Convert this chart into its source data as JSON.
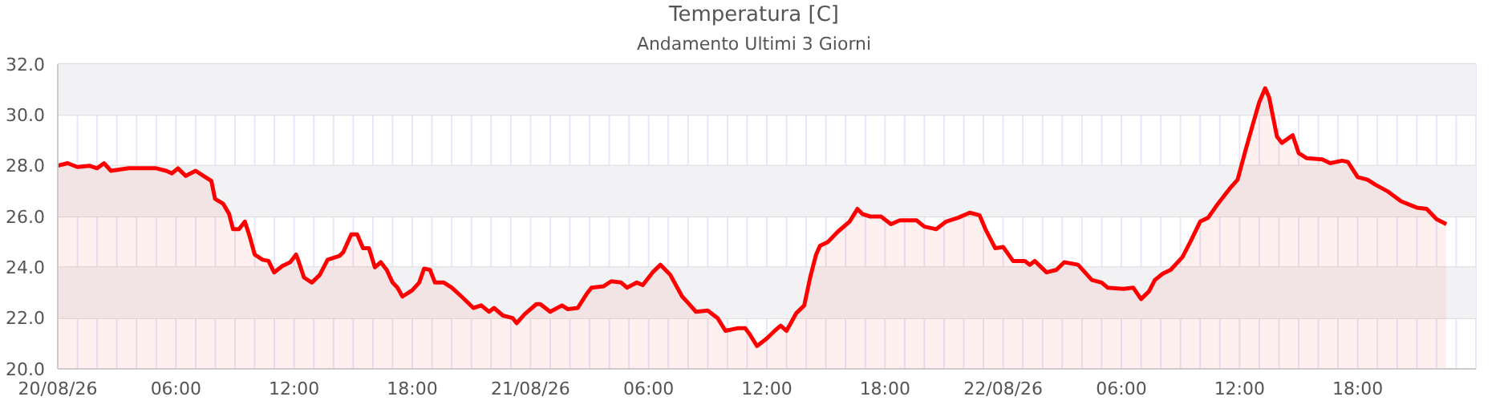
{
  "chart_data": {
    "type": "area",
    "title": "Temperatura [C]",
    "subtitle": "Andamento Ultimi 3 Giorni",
    "x": [
      "--08-20T00:00",
      "--08-20T00:30",
      "--08-20T01:00",
      "--08-20T01:36",
      "--08-20T02:00",
      "--08-20T02:21",
      "--08-20T02:42",
      "--08-20T03:36",
      "--08-20T05:00",
      "--08-20T05:30",
      "--08-20T05:48",
      "--08-20T06:06",
      "--08-20T06:30",
      "--08-20T07:00",
      "--08-20T07:24",
      "--08-20T07:48",
      "--08-20T07:59",
      "--08-20T08:24",
      "--08-20T08:42",
      "--08-20T08:54",
      "--08-20T09:12",
      "--08-20T09:30",
      "--08-20T09:45",
      "--08-20T10:00",
      "--08-20T10:24",
      "--08-20T10:42",
      "--08-20T10:59",
      "--08-20T11:24",
      "--08-20T11:48",
      "--08-20T12:06",
      "--08-20T12:12",
      "--08-20T12:30",
      "--08-20T12:54",
      "--08-20T13:18",
      "--08-20T13:42",
      "--08-20T14:18",
      "--08-20T14:30",
      "--08-20T14:54",
      "--08-20T15:12",
      "--08-20T15:30",
      "--08-20T15:48",
      "--08-20T16:06",
      "--08-20T16:24",
      "--08-20T16:42",
      "--08-20T17:00",
      "--08-20T17:15",
      "--08-20T17:30",
      "--08-20T18:00",
      "--08-20T18:21",
      "--08-20T18:36",
      "--08-20T18:54",
      "--08-20T19:09",
      "--08-20T19:36",
      "--08-20T20:00",
      "--08-20T20:30",
      "--08-20T21:06",
      "--08-20T21:30",
      "--08-20T21:54",
      "--08-20T22:09",
      "--08-20T22:36",
      "--08-20T23:06",
      "--08-20T23:18",
      "--08-20T23:42",
      "--08-21T00:18",
      "--08-21T00:30",
      "--08-21T01:00",
      "--08-21T01:36",
      "--08-21T01:54",
      "--08-21T02:24",
      "--08-21T02:51",
      "--08-21T03:06",
      "--08-21T03:42",
      "--08-21T04:06",
      "--08-21T04:36",
      "--08-21T04:54",
      "--08-21T05:24",
      "--08-21T05:42",
      "--08-21T06:12",
      "--08-21T06:36",
      "--08-21T07:06",
      "--08-21T07:42",
      "--08-21T08:00",
      "--08-21T08:24",
      "--08-21T09:00",
      "--08-21T09:30",
      "--08-21T09:54",
      "--08-21T10:30",
      "--08-21T10:54",
      "--08-21T11:06",
      "--08-21T11:30",
      "--08-21T12:00",
      "--08-21T12:24",
      "--08-21T12:42",
      "--08-21T13:00",
      "--08-21T13:30",
      "--08-21T13:54",
      "--08-21T14:12",
      "--08-21T14:30",
      "--08-21T14:42",
      "--08-21T15:06",
      "--08-21T15:36",
      "--08-21T16:12",
      "--08-21T16:36",
      "--08-21T16:51",
      "--08-21T17:15",
      "--08-21T17:48",
      "--08-21T18:18",
      "--08-21T18:45",
      "--08-21T19:36",
      "--08-21T20:00",
      "--08-21T20:36",
      "--08-21T21:06",
      "--08-21T21:42",
      "--08-21T22:18",
      "--08-21T22:48",
      "--08-21T23:06",
      "--08-21T23:36",
      "--08-22T00:00",
      "--08-22T00:30",
      "--08-22T01:06",
      "--08-22T01:21",
      "--08-22T01:36",
      "--08-22T02:12",
      "--08-22T02:42",
      "--08-22T03:06",
      "--08-22T03:48",
      "--08-22T04:30",
      "--08-22T05:00",
      "--08-22T05:18",
      "--08-22T06:06",
      "--08-22T06:36",
      "--08-22T07:00",
      "--08-22T07:24",
      "--08-22T07:42",
      "--08-22T08:06",
      "--08-22T08:30",
      "--08-22T09:06",
      "--08-22T09:30",
      "--08-22T10:00",
      "--08-22T10:24",
      "--08-22T10:54",
      "--08-22T11:30",
      "--08-22T11:54",
      "--08-22T12:18",
      "--08-22T12:42",
      "--08-22T13:00",
      "--08-22T13:18",
      "--08-22T13:30",
      "--08-22T13:54",
      "--08-22T14:09",
      "--08-22T14:42",
      "--08-22T15:00",
      "--08-22T15:24",
      "--08-22T16:12",
      "--08-22T16:36",
      "--08-22T17:12",
      "--08-22T17:30",
      "--08-22T18:00",
      "--08-22T18:30",
      "--08-22T18:54",
      "--08-22T19:30",
      "--08-22T20:12",
      "--08-22T21:00",
      "--08-22T21:30",
      "--08-22T22:00",
      "--08-22T22:30"
    ],
    "series": [
      {
        "color": "#ff0000",
        "values": [
          28.0,
          28.1,
          27.95,
          28.0,
          27.9,
          28.1,
          27.8,
          27.9,
          27.9,
          27.8,
          27.7,
          27.9,
          27.6,
          27.8,
          27.6,
          27.4,
          26.7,
          26.5,
          26.1,
          25.5,
          25.5,
          25.8,
          25.2,
          24.5,
          24.3,
          24.25,
          23.8,
          24.05,
          24.2,
          24.5,
          24.3,
          23.6,
          23.4,
          23.7,
          24.3,
          24.45,
          24.6,
          25.3,
          25.3,
          24.75,
          24.75,
          24.0,
          24.2,
          23.9,
          23.4,
          23.2,
          22.85,
          23.1,
          23.4,
          23.95,
          23.9,
          23.4,
          23.4,
          23.2,
          22.85,
          22.4,
          22.5,
          22.25,
          22.4,
          22.1,
          22.0,
          21.8,
          22.15,
          22.55,
          22.55,
          22.25,
          22.5,
          22.35,
          22.4,
          22.95,
          23.2,
          23.25,
          23.45,
          23.4,
          23.2,
          23.4,
          23.3,
          23.8,
          24.1,
          23.7,
          22.85,
          22.6,
          22.25,
          22.3,
          22.0,
          21.5,
          21.6,
          21.6,
          21.4,
          20.9,
          21.2,
          21.5,
          21.7,
          21.5,
          22.2,
          22.5,
          23.6,
          24.5,
          24.85,
          25.0,
          25.4,
          25.8,
          26.3,
          26.1,
          26.0,
          26.0,
          25.7,
          25.85,
          25.85,
          25.6,
          25.5,
          25.8,
          25.95,
          26.15,
          26.05,
          25.5,
          24.75,
          24.8,
          24.25,
          24.25,
          24.1,
          24.25,
          23.8,
          23.9,
          24.2,
          24.1,
          23.5,
          23.4,
          23.2,
          23.15,
          23.2,
          22.75,
          23.05,
          23.5,
          23.75,
          23.9,
          24.4,
          25.0,
          25.8,
          25.95,
          26.5,
          27.1,
          27.45,
          28.6,
          29.7,
          30.5,
          31.05,
          30.7,
          29.15,
          28.9,
          29.2,
          28.5,
          28.3,
          28.25,
          28.1,
          28.2,
          28.15,
          27.55,
          27.45,
          27.25,
          27.0,
          26.6,
          26.35,
          26.3,
          25.9,
          25.7
        ]
      }
    ],
    "xlim": [
      "--08-20T00:00",
      "--08-23T00:00"
    ],
    "xticks": [
      {
        "value": "--08-20T00:00",
        "label": "20/08/26"
      },
      {
        "value": "--08-20T01:00",
        "label": null
      },
      {
        "value": "--08-20T02:00",
        "label": null
      },
      {
        "value": "--08-20T03:00",
        "label": null
      },
      {
        "value": "--08-20T04:00",
        "label": null
      },
      {
        "value": "--08-20T05:00",
        "label": null
      },
      {
        "value": "--08-20T06:00",
        "label": "06:00"
      },
      {
        "value": "--08-20T07:00",
        "label": null
      },
      {
        "value": "--08-20T08:00",
        "label": null
      },
      {
        "value": "--08-20T09:00",
        "label": null
      },
      {
        "value": "--08-20T10:00",
        "label": null
      },
      {
        "value": "--08-20T11:00",
        "label": null
      },
      {
        "value": "--08-20T12:00",
        "label": "12:00"
      },
      {
        "value": "--08-20T13:00",
        "label": null
      },
      {
        "value": "--08-20T14:00",
        "label": null
      },
      {
        "value": "--08-20T15:00",
        "label": null
      },
      {
        "value": "--08-20T16:00",
        "label": null
      },
      {
        "value": "--08-20T17:00",
        "label": null
      },
      {
        "value": "--08-20T18:00",
        "label": "18:00"
      },
      {
        "value": "--08-20T19:00",
        "label": null
      },
      {
        "value": "--08-20T20:00",
        "label": null
      },
      {
        "value": "--08-20T21:00",
        "label": null
      },
      {
        "value": "--08-20T22:00",
        "label": null
      },
      {
        "value": "--08-20T23:00",
        "label": null
      },
      {
        "value": "--08-21T00:00",
        "label": "21/08/26"
      },
      {
        "value": "--08-21T01:00",
        "label": null
      },
      {
        "value": "--08-21T02:00",
        "label": null
      },
      {
        "value": "--08-21T03:00",
        "label": null
      },
      {
        "value": "--08-21T04:00",
        "label": null
      },
      {
        "value": "--08-21T05:00",
        "label": null
      },
      {
        "value": "--08-21T06:00",
        "label": "06:00"
      },
      {
        "value": "--08-21T07:00",
        "label": null
      },
      {
        "value": "--08-21T08:00",
        "label": null
      },
      {
        "value": "--08-21T09:00",
        "label": null
      },
      {
        "value": "--08-21T10:00",
        "label": null
      },
      {
        "value": "--08-21T11:00",
        "label": null
      },
      {
        "value": "--08-21T12:00",
        "label": "12:00"
      },
      {
        "value": "--08-21T13:00",
        "label": null
      },
      {
        "value": "--08-21T14:00",
        "label": null
      },
      {
        "value": "--08-21T15:00",
        "label": null
      },
      {
        "value": "--08-21T16:00",
        "label": null
      },
      {
        "value": "--08-21T17:00",
        "label": null
      },
      {
        "value": "--08-21T18:00",
        "label": "18:00"
      },
      {
        "value": "--08-21T19:00",
        "label": null
      },
      {
        "value": "--08-21T20:00",
        "label": null
      },
      {
        "value": "--08-21T21:00",
        "label": null
      },
      {
        "value": "--08-21T22:00",
        "label": null
      },
      {
        "value": "--08-21T23:00",
        "label": null
      },
      {
        "value": "--08-22T00:00",
        "label": "22/08/26"
      },
      {
        "value": "--08-22T01:00",
        "label": null
      },
      {
        "value": "--08-22T02:00",
        "label": null
      },
      {
        "value": "--08-22T03:00",
        "label": null
      },
      {
        "value": "--08-22T04:00",
        "label": null
      },
      {
        "value": "--08-22T05:00",
        "label": null
      },
      {
        "value": "--08-22T06:00",
        "label": "06:00"
      },
      {
        "value": "--08-22T07:00",
        "label": null
      },
      {
        "value": "--08-22T08:00",
        "label": null
      },
      {
        "value": "--08-22T09:00",
        "label": null
      },
      {
        "value": "--08-22T10:00",
        "label": null
      },
      {
        "value": "--08-22T11:00",
        "label": null
      },
      {
        "value": "--08-22T12:00",
        "label": "12:00"
      },
      {
        "value": "--08-22T13:00",
        "label": null
      },
      {
        "value": "--08-22T14:00",
        "label": null
      },
      {
        "value": "--08-22T15:00",
        "label": null
      },
      {
        "value": "--08-22T16:00",
        "label": null
      },
      {
        "value": "--08-22T17:00",
        "label": null
      },
      {
        "value": "--08-22T18:00",
        "label": "18:00"
      },
      {
        "value": "--08-22T19:00",
        "label": null
      },
      {
        "value": "--08-22T20:00",
        "label": null
      },
      {
        "value": "--08-22T21:00",
        "label": null
      },
      {
        "value": "--08-22T22:00",
        "label": null
      },
      {
        "value": "--08-22T23:00",
        "label": null
      }
    ],
    "ylim": [
      20,
      32
    ],
    "yticks": [
      {
        "value": 20,
        "label": "20.0"
      },
      {
        "value": 22,
        "label": "22.0"
      },
      {
        "value": 24,
        "label": "24.0"
      },
      {
        "value": 26,
        "label": "26.0"
      },
      {
        "value": 28,
        "label": "28.0"
      },
      {
        "value": 30,
        "label": "30.0"
      },
      {
        "value": 32,
        "label": "32.0"
      }
    ],
    "bands": [
      {
        "axis": "y",
        "from": 22,
        "to": 24,
        "color": "#f2f2f4"
      },
      {
        "axis": "y",
        "from": 26,
        "to": 28,
        "color": "#f2f2f4"
      },
      {
        "axis": "y",
        "from": 30,
        "to": 32,
        "color": "#f2f2f4"
      }
    ],
    "grid": true,
    "legend": false,
    "marker": "none",
    "line_style": "solid"
  }
}
